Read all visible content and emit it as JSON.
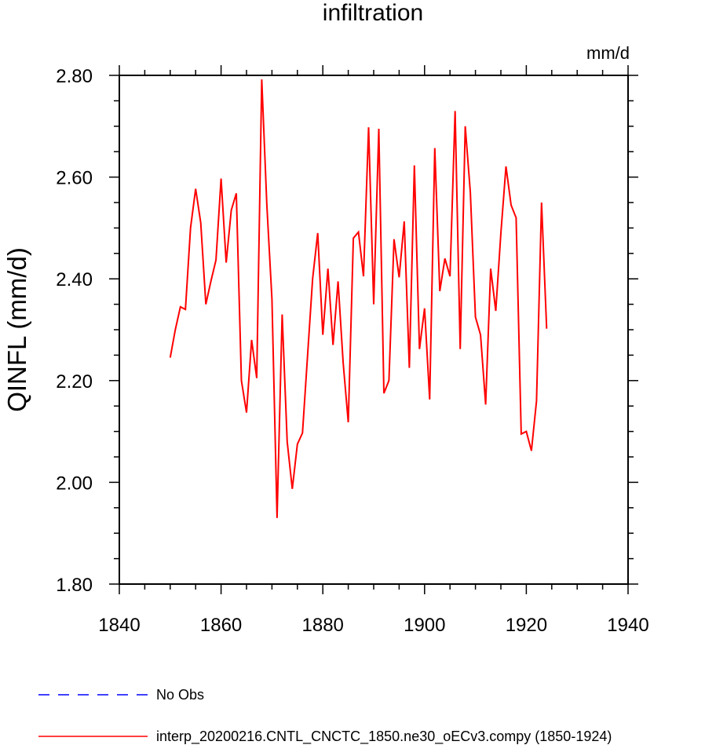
{
  "chart_data": {
    "type": "line",
    "title": "infiltration",
    "units": "mm/d",
    "ylabel": "QINFL  (mm/d)",
    "xlabel": "",
    "xlim": [
      1840,
      1940
    ],
    "ylim": [
      1.8,
      2.8
    ],
    "xticks": [
      1840,
      1860,
      1880,
      1900,
      1920,
      1940
    ],
    "yticks": [
      1.8,
      2.0,
      2.2,
      2.4,
      2.6,
      2.8
    ],
    "ytick_labels": [
      "1.80",
      "2.00",
      "2.20",
      "2.40",
      "2.60",
      "2.80"
    ],
    "series": [
      {
        "name": "interp_20200216.CNTL_CNCTC_1850.ne30_oECv3.compy (1850-1924)",
        "color": "#ff0000",
        "style": "solid",
        "x": [
          1850,
          1851,
          1852,
          1853,
          1854,
          1855,
          1856,
          1857,
          1858,
          1859,
          1860,
          1861,
          1862,
          1863,
          1864,
          1865,
          1866,
          1867,
          1868,
          1869,
          1870,
          1871,
          1872,
          1873,
          1874,
          1875,
          1876,
          1877,
          1878,
          1879,
          1880,
          1881,
          1882,
          1883,
          1884,
          1885,
          1886,
          1887,
          1888,
          1889,
          1890,
          1891,
          1892,
          1893,
          1894,
          1895,
          1896,
          1897,
          1898,
          1899,
          1900,
          1901,
          1902,
          1903,
          1904,
          1905,
          1906,
          1907,
          1908,
          1909,
          1910,
          1911,
          1912,
          1913,
          1914,
          1915,
          1916,
          1917,
          1918,
          1919,
          1920,
          1921,
          1922,
          1923,
          1924
        ],
        "values": [
          2.245,
          2.3,
          2.345,
          2.34,
          2.5,
          2.577,
          2.51,
          2.35,
          2.395,
          2.437,
          2.597,
          2.432,
          2.535,
          2.568,
          2.2,
          2.137,
          2.28,
          2.205,
          2.792,
          2.545,
          2.36,
          1.93,
          2.33,
          2.08,
          1.987,
          2.075,
          2.097,
          2.25,
          2.4,
          2.49,
          2.29,
          2.42,
          2.27,
          2.395,
          2.235,
          2.118,
          2.48,
          2.492,
          2.405,
          2.698,
          2.35,
          2.695,
          2.175,
          2.2,
          2.478,
          2.403,
          2.513,
          2.225,
          2.623,
          2.262,
          2.342,
          2.163,
          2.657,
          2.376,
          2.44,
          2.405,
          2.73,
          2.262,
          2.7,
          2.57,
          2.325,
          2.29,
          2.153,
          2.42,
          2.337,
          2.49,
          2.621,
          2.545,
          2.52,
          2.095,
          2.1,
          2.062,
          2.16,
          2.55,
          2.302
        ]
      },
      {
        "name": "No Obs",
        "color": "#0000ff",
        "style": "dashed",
        "x": [],
        "values": []
      }
    ]
  }
}
